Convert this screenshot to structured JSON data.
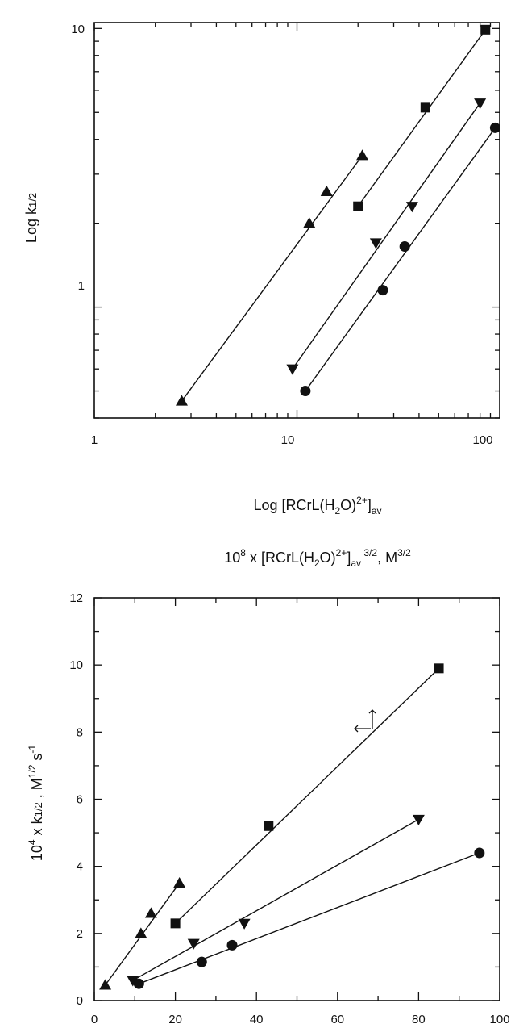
{
  "chart_data": [
    {
      "type": "scatter",
      "scale": "log-log",
      "ylabel": "Log k1/2",
      "xlabel": "Log [RCrL(H2O)2+]av",
      "xlim": [
        1,
        100
      ],
      "ylim": [
        0.4,
        10
      ],
      "x_tick_labels": [
        "1",
        "10",
        "100"
      ],
      "y_tick_labels": [
        "1",
        "10"
      ],
      "series": [
        {
          "marker": "triangle-up",
          "x": [
            2.7,
            11.5,
            14,
            21
          ],
          "y": [
            0.46,
            2.0,
            2.6,
            3.5
          ],
          "fit_line": [
            [
              2.7,
              0.46
            ],
            [
              21,
              3.5
            ]
          ]
        },
        {
          "marker": "square",
          "x": [
            20,
            43,
            85
          ],
          "y": [
            2.3,
            5.2,
            9.9
          ],
          "fit_line": [
            [
              20,
              2.3
            ],
            [
              85,
              9.9
            ]
          ]
        },
        {
          "marker": "triangle-down",
          "x": [
            9.5,
            24.5,
            37,
            80
          ],
          "y": [
            0.6,
            1.7,
            2.3,
            5.4
          ],
          "fit_line": [
            [
              9.5,
              0.6
            ],
            [
              80,
              5.4
            ]
          ]
        },
        {
          "marker": "circle",
          "x": [
            11,
            26.5,
            34,
            95
          ],
          "y": [
            0.5,
            1.15,
            1.65,
            4.4
          ],
          "fit_line": [
            [
              11,
              0.5
            ],
            [
              95,
              4.4
            ]
          ]
        }
      ]
    },
    {
      "type": "scatter",
      "scale": "linear",
      "title": "10^8 x [RCrL(H2O)2+]av^3/2,  M^3/2",
      "ylabel": "10^4 x k1/2 ,  M^1/2 s^-1",
      "xlim": [
        0,
        100
      ],
      "ylim": [
        0,
        12
      ],
      "x_ticks": [
        0,
        20,
        40,
        60,
        80,
        100
      ],
      "y_ticks": [
        0,
        2,
        4,
        6,
        8,
        10,
        12
      ],
      "annotation": "arrows at (68, 8.2) pointing left and up",
      "series": [
        {
          "marker": "triangle-up",
          "x": [
            2.7,
            11.5,
            14,
            21
          ],
          "y": [
            0.46,
            2.0,
            2.6,
            3.5
          ],
          "fit_line": [
            [
              2.7,
              0.46
            ],
            [
              21,
              3.5
            ]
          ]
        },
        {
          "marker": "square",
          "x": [
            20,
            43,
            85
          ],
          "y": [
            2.3,
            5.2,
            9.9
          ],
          "fit_line": [
            [
              20,
              2.3
            ],
            [
              85,
              9.9
            ]
          ]
        },
        {
          "marker": "triangle-down",
          "x": [
            9.5,
            24.5,
            37,
            80
          ],
          "y": [
            0.6,
            1.7,
            2.3,
            5.4
          ],
          "fit_line": [
            [
              9.5,
              0.6
            ],
            [
              80,
              5.4
            ]
          ]
        },
        {
          "marker": "circle",
          "x": [
            11,
            26.5,
            34,
            95
          ],
          "y": [
            0.5,
            1.15,
            1.65,
            4.4
          ],
          "fit_line": [
            [
              11,
              0.5
            ],
            [
              95,
              4.4
            ]
          ]
        }
      ]
    }
  ]
}
